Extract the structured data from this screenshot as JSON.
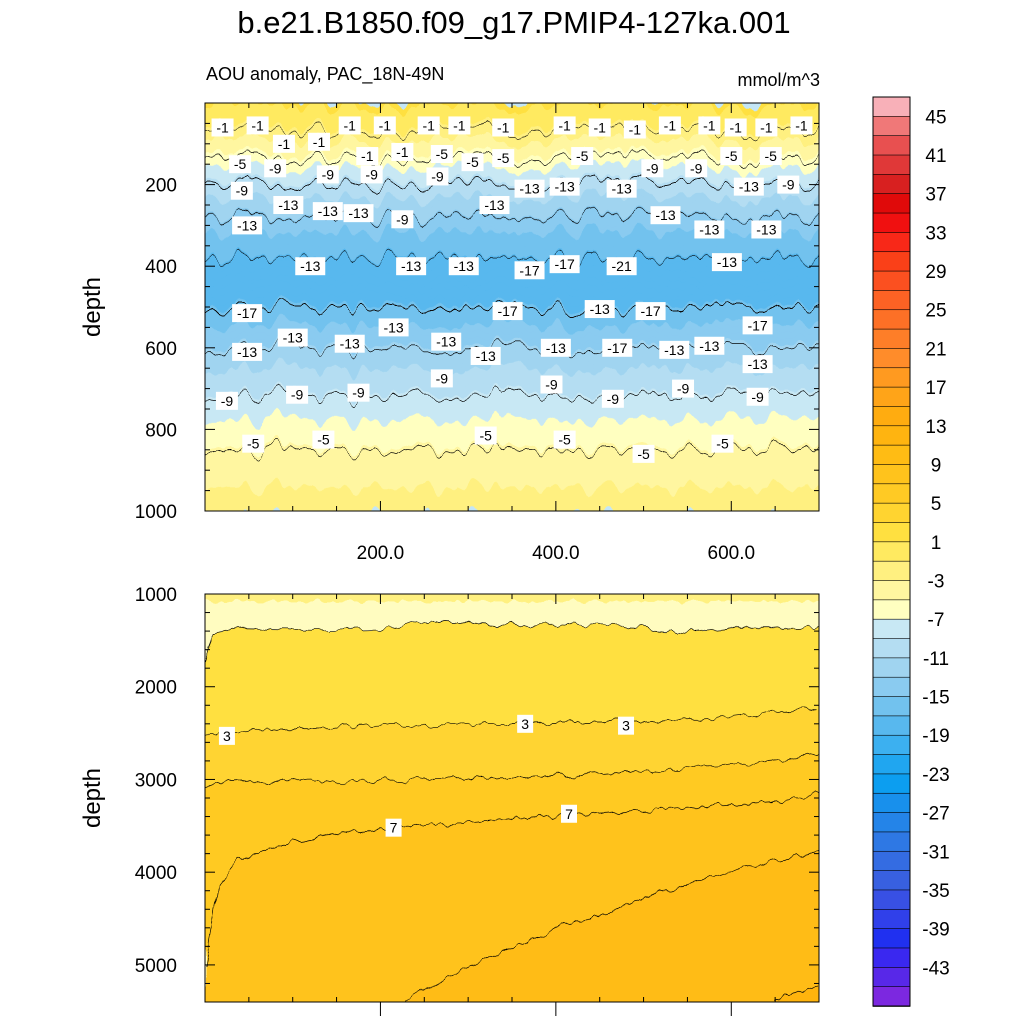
{
  "chart_data": [
    {
      "type": "contour",
      "panel": "upper",
      "title": "b.e21.B1850.f09_g17.PMIP4-127ka.001",
      "subtitle_left": "AOU anomaly, PAC_18N-49N",
      "subtitle_right": "mmol/m^3",
      "xlabel": "",
      "ylabel": "depth",
      "xlim": [
        0,
        700
      ],
      "ylim": [
        0,
        1000
      ],
      "yreversed": true,
      "xticks": [
        200,
        400,
        600
      ],
      "xtick_labels": [
        "200.0",
        "400.0",
        "600.0"
      ],
      "yticks": [
        200,
        400,
        600,
        800,
        1000
      ],
      "ytick_labels": [
        "200",
        "400",
        "600",
        "800",
        "1000"
      ],
      "depth_profile": {
        "depth": [
          0,
          50,
          120,
          200,
          300,
          420,
          500,
          600,
          700,
          780,
          850,
          950,
          1000
        ],
        "value": [
          1.5,
          0,
          -4,
          -9,
          -14,
          -18.5,
          -17,
          -13,
          -9.5,
          -7,
          -5,
          -3,
          -1.5
        ]
      },
      "contour_labels": [
        {
          "text": "-1",
          "x": 20,
          "y": 60
        },
        {
          "text": "-1",
          "x": 60,
          "y": 55
        },
        {
          "text": "-1",
          "x": 90,
          "y": 100
        },
        {
          "text": "-1",
          "x": 130,
          "y": 95
        },
        {
          "text": "-1",
          "x": 165,
          "y": 55
        },
        {
          "text": "-1",
          "x": 185,
          "y": 130
        },
        {
          "text": "-1",
          "x": 205,
          "y": 55
        },
        {
          "text": "-1",
          "x": 225,
          "y": 120
        },
        {
          "text": "-1",
          "x": 255,
          "y": 55
        },
        {
          "text": "-1",
          "x": 290,
          "y": 55
        },
        {
          "text": "-1",
          "x": 340,
          "y": 60
        },
        {
          "text": "-1",
          "x": 410,
          "y": 55
        },
        {
          "text": "-1",
          "x": 450,
          "y": 60
        },
        {
          "text": "-1",
          "x": 490,
          "y": 65
        },
        {
          "text": "-1",
          "x": 530,
          "y": 55
        },
        {
          "text": "-1",
          "x": 575,
          "y": 55
        },
        {
          "text": "-1",
          "x": 605,
          "y": 60
        },
        {
          "text": "-1",
          "x": 640,
          "y": 60
        },
        {
          "text": "-1",
          "x": 680,
          "y": 55
        },
        {
          "text": "-5",
          "x": 40,
          "y": 150
        },
        {
          "text": "-5",
          "x": 270,
          "y": 125
        },
        {
          "text": "-5",
          "x": 305,
          "y": 145
        },
        {
          "text": "-5",
          "x": 340,
          "y": 135
        },
        {
          "text": "-5",
          "x": 430,
          "y": 130
        },
        {
          "text": "-5",
          "x": 600,
          "y": 130
        },
        {
          "text": "-5",
          "x": 645,
          "y": 130
        },
        {
          "text": "-9",
          "x": 80,
          "y": 160
        },
        {
          "text": "-9",
          "x": 140,
          "y": 175
        },
        {
          "text": "-9",
          "x": 190,
          "y": 175
        },
        {
          "text": "-9",
          "x": 265,
          "y": 180
        },
        {
          "text": "-9",
          "x": 510,
          "y": 160
        },
        {
          "text": "-9",
          "x": 560,
          "y": 160
        },
        {
          "text": "-9",
          "x": 665,
          "y": 200
        },
        {
          "text": "-9",
          "x": 225,
          "y": 285
        },
        {
          "text": "-9",
          "x": 42,
          "y": 215
        },
        {
          "text": "-13",
          "x": 95,
          "y": 250
        },
        {
          "text": "-13",
          "x": 140,
          "y": 265
        },
        {
          "text": "-13",
          "x": 175,
          "y": 270
        },
        {
          "text": "-13",
          "x": 330,
          "y": 250
        },
        {
          "text": "-13",
          "x": 370,
          "y": 210
        },
        {
          "text": "-13",
          "x": 410,
          "y": 205
        },
        {
          "text": "-13",
          "x": 475,
          "y": 210
        },
        {
          "text": "-13",
          "x": 525,
          "y": 275
        },
        {
          "text": "-13",
          "x": 575,
          "y": 310
        },
        {
          "text": "-13",
          "x": 620,
          "y": 205
        },
        {
          "text": "-13",
          "x": 640,
          "y": 310
        },
        {
          "text": "-13",
          "x": 48,
          "y": 300
        },
        {
          "text": "-13",
          "x": 120,
          "y": 400
        },
        {
          "text": "-13",
          "x": 235,
          "y": 400
        },
        {
          "text": "-13",
          "x": 295,
          "y": 400
        },
        {
          "text": "-13",
          "x": 595,
          "y": 390
        },
        {
          "text": "-13",
          "x": 450,
          "y": 505
        },
        {
          "text": "-13",
          "x": 100,
          "y": 575
        },
        {
          "text": "-13",
          "x": 165,
          "y": 590
        },
        {
          "text": "-13",
          "x": 215,
          "y": 550
        },
        {
          "text": "-13",
          "x": 275,
          "y": 585
        },
        {
          "text": "-13",
          "x": 320,
          "y": 620
        },
        {
          "text": "-13",
          "x": 400,
          "y": 600
        },
        {
          "text": "-13",
          "x": 535,
          "y": 605
        },
        {
          "text": "-13",
          "x": 575,
          "y": 595
        },
        {
          "text": "-13",
          "x": 48,
          "y": 610
        },
        {
          "text": "-13",
          "x": 630,
          "y": 640
        },
        {
          "text": "-17",
          "x": 370,
          "y": 410
        },
        {
          "text": "-17",
          "x": 410,
          "y": 395
        },
        {
          "text": "-17",
          "x": 345,
          "y": 510
        },
        {
          "text": "-17",
          "x": 508,
          "y": 510
        },
        {
          "text": "-17",
          "x": 470,
          "y": 600
        },
        {
          "text": "-17",
          "x": 48,
          "y": 515
        },
        {
          "text": "-17",
          "x": 630,
          "y": 545
        },
        {
          "text": "-21",
          "x": 475,
          "y": 400
        },
        {
          "text": "-9",
          "x": 25,
          "y": 730
        },
        {
          "text": "-9",
          "x": 105,
          "y": 715
        },
        {
          "text": "-9",
          "x": 175,
          "y": 710
        },
        {
          "text": "-9",
          "x": 270,
          "y": 675
        },
        {
          "text": "-9",
          "x": 395,
          "y": 690
        },
        {
          "text": "-9",
          "x": 465,
          "y": 725
        },
        {
          "text": "-9",
          "x": 545,
          "y": 700
        },
        {
          "text": "-9",
          "x": 630,
          "y": 720
        },
        {
          "text": "-5",
          "x": 55,
          "y": 835
        },
        {
          "text": "-5",
          "x": 135,
          "y": 825
        },
        {
          "text": "-5",
          "x": 320,
          "y": 815
        },
        {
          "text": "-5",
          "x": 410,
          "y": 825
        },
        {
          "text": "-5",
          "x": 500,
          "y": 860
        },
        {
          "text": "-5",
          "x": 590,
          "y": 835
        }
      ]
    },
    {
      "type": "contour",
      "panel": "lower",
      "xlabel": "",
      "ylabel": "depth",
      "xlim": [
        0,
        700
      ],
      "ylim": [
        1000,
        5400
      ],
      "yreversed": true,
      "yticks": [
        1000,
        2000,
        3000,
        4000,
        5000
      ],
      "ytick_labels": [
        "1000",
        "2000",
        "3000",
        "4000",
        "5000"
      ],
      "contours": [
        {
          "level": 1,
          "x": [
            0,
            10,
            40,
            120,
            210,
            260,
            330,
            400,
            470,
            520,
            560,
            600,
            650,
            700
          ],
          "depth": [
            1750,
            1420,
            1380,
            1390,
            1370,
            1280,
            1330,
            1320,
            1350,
            1380,
            1420,
            1380,
            1380,
            1350
          ]
        },
        {
          "level": 3,
          "x": [
            0,
            30,
            100,
            200,
            300,
            400,
            500,
            600,
            700
          ],
          "depth": [
            2520,
            2470,
            2440,
            2420,
            2400,
            2380,
            2380,
            2330,
            2220
          ]
        },
        {
          "level": 5,
          "x": [
            0,
            50,
            150,
            250,
            350,
            450,
            550,
            650,
            700
          ],
          "depth": [
            3050,
            3030,
            3020,
            3000,
            2980,
            2930,
            2880,
            2800,
            2720
          ]
        },
        {
          "level": 7,
          "x": [
            0,
            15,
            40,
            90,
            160,
            260,
            360,
            460,
            560,
            660,
            700
          ],
          "depth": [
            5000,
            4150,
            3850,
            3700,
            3580,
            3500,
            3420,
            3350,
            3300,
            3230,
            3150
          ]
        },
        {
          "level": 9,
          "x": [
            225,
            300,
            400,
            500,
            600,
            700
          ],
          "depth": [
            5400,
            5020,
            4620,
            4280,
            4000,
            3770
          ]
        },
        {
          "level": 11,
          "x": [
            645,
            700
          ],
          "depth": [
            5400,
            5200
          ]
        }
      ],
      "contour_labels": [
        {
          "text": "3",
          "x": 25,
          "y": 2530
        },
        {
          "text": "3",
          "x": 365,
          "y": 2400
        },
        {
          "text": "3",
          "x": 480,
          "y": 2420
        },
        {
          "text": "7",
          "x": 215,
          "y": 3520
        },
        {
          "text": "7",
          "x": 415,
          "y": 3370
        }
      ]
    }
  ],
  "colorbar": {
    "levels": [
      -45,
      -43,
      -41,
      -39,
      -37,
      -35,
      -33,
      -31,
      -29,
      -27,
      -25,
      -23,
      -21,
      -19,
      -17,
      -15,
      -13,
      -11,
      -9,
      -7,
      -5,
      -3,
      -1,
      1,
      3,
      5,
      7,
      9,
      11,
      13,
      15,
      17,
      19,
      21,
      23,
      25,
      27,
      29,
      31,
      33,
      35,
      37,
      39,
      41,
      43,
      45
    ],
    "tick_labels": [
      "45",
      "41",
      "37",
      "33",
      "29",
      "25",
      "21",
      "17",
      "13",
      "9",
      "5",
      "1",
      "-3",
      "-7",
      "-11",
      "-15",
      "-19",
      "-23",
      "-27",
      "-31",
      "-35",
      "-39",
      "-43"
    ],
    "colors": [
      "#f8b0b8",
      "#f07878",
      "#e85050",
      "#e03838",
      "#d82020",
      "#e00a0a",
      "#f01010",
      "#f82818",
      "#fa4018",
      "#fb5020",
      "#fc6224",
      "#fd7026",
      "#fe7e28",
      "#ff8c2a",
      "#ff9a20",
      "#ffa418",
      "#ffac10",
      "#ffb410",
      "#ffbc14",
      "#ffc31c",
      "#ffca24",
      "#ffd430",
      "#ffe040",
      "#ffea60",
      "#fff080",
      "#fff6a0",
      "#ffffc0",
      "#c8e8f4",
      "#b4ddf2",
      "#a0d4f0",
      "#8acbf0",
      "#72c2ee",
      "#58b8ee",
      "#3cb0f0",
      "#20a6f0",
      "#0c9ef0",
      "#1890ec",
      "#2484e8",
      "#2e78e4",
      "#346ce2",
      "#3860e0",
      "#3850e4",
      "#3040ea",
      "#2030f0",
      "#3a28f0",
      "#5828e8",
      "#7c28e0"
    ]
  }
}
